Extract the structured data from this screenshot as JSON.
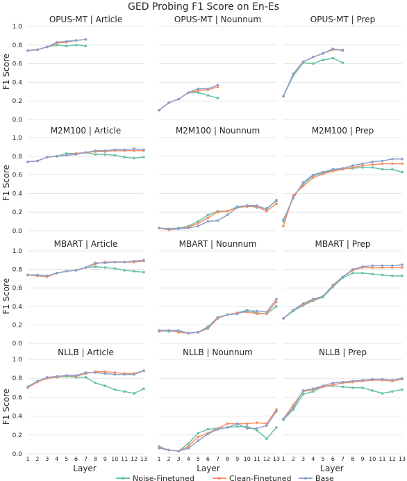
{
  "title": "GED Probing F1 Score on En-Es",
  "xlabel": "Layer",
  "ylabel": "F1 Score",
  "colors": {
    "Noise-Finetuned": "#66c2a5",
    "Clean-Finetuned": "#fc8d62",
    "Base": "#8da0cb",
    "grid": "#e6e6e6"
  },
  "legend": [
    "Noise-Finetuned",
    "Clean-Finetuned",
    "Base"
  ],
  "chart_data": {
    "type": "line",
    "grid": true,
    "ylim": [
      0,
      1
    ],
    "yticks": [
      "0.0",
      "0.2",
      "0.4",
      "0.6",
      "0.8",
      "1.0"
    ],
    "xticks": [
      "1",
      "2",
      "3",
      "4",
      "5",
      "6",
      "7",
      "8",
      "9",
      "10",
      "11",
      "12",
      "13"
    ],
    "panels": [
      {
        "title": "OPUS-MT | Article",
        "x": [
          1,
          2,
          3,
          4,
          5,
          6,
          7
        ],
        "series": [
          {
            "name": "Noise-Finetuned",
            "values": [
              0.74,
              0.75,
              0.78,
              0.8,
              0.79,
              0.8,
              0.79
            ]
          },
          {
            "name": "Clean-Finetuned",
            "values": [
              0.74,
              0.75,
              0.78,
              0.82,
              0.83,
              0.85,
              0.86
            ]
          },
          {
            "name": "Base",
            "values": [
              0.74,
              0.75,
              0.78,
              0.83,
              0.84,
              0.85,
              0.86
            ]
          }
        ]
      },
      {
        "title": "OPUS-MT | Nounnum",
        "x": [
          1,
          2,
          3,
          4,
          5,
          6,
          7
        ],
        "series": [
          {
            "name": "Noise-Finetuned",
            "values": [
              0.1,
              0.18,
              0.22,
              0.29,
              0.29,
              0.26,
              0.23
            ]
          },
          {
            "name": "Clean-Finetuned",
            "values": [
              0.1,
              0.18,
              0.22,
              0.29,
              0.31,
              0.32,
              0.35
            ]
          },
          {
            "name": "Base",
            "values": [
              0.1,
              0.18,
              0.22,
              0.29,
              0.33,
              0.33,
              0.37
            ]
          }
        ]
      },
      {
        "title": "OPUS-MT | Prep",
        "x": [
          1,
          2,
          3,
          4,
          5,
          6,
          7
        ],
        "series": [
          {
            "name": "Noise-Finetuned",
            "values": [
              0.25,
              0.47,
              0.61,
              0.6,
              0.64,
              0.66,
              0.61
            ]
          },
          {
            "name": "Clean-Finetuned",
            "values": [
              0.25,
              0.49,
              0.62,
              0.67,
              0.71,
              0.75,
              0.75
            ]
          },
          {
            "name": "Base",
            "values": [
              0.25,
              0.49,
              0.62,
              0.67,
              0.71,
              0.76,
              0.74
            ]
          }
        ]
      },
      {
        "title": "M2M100 | Article",
        "x": [
          1,
          2,
          3,
          4,
          5,
          6,
          7,
          8,
          9,
          10,
          11,
          12,
          13
        ],
        "series": [
          {
            "name": "Noise-Finetuned",
            "values": [
              0.74,
              0.75,
              0.79,
              0.8,
              0.83,
              0.83,
              0.84,
              0.82,
              0.82,
              0.81,
              0.79,
              0.78,
              0.79
            ]
          },
          {
            "name": "Clean-Finetuned",
            "values": [
              0.74,
              0.75,
              0.79,
              0.8,
              0.81,
              0.83,
              0.84,
              0.85,
              0.85,
              0.86,
              0.86,
              0.86,
              0.86
            ]
          },
          {
            "name": "Base",
            "values": [
              0.74,
              0.75,
              0.79,
              0.8,
              0.81,
              0.82,
              0.84,
              0.86,
              0.86,
              0.87,
              0.87,
              0.88,
              0.87
            ]
          }
        ]
      },
      {
        "title": "M2M100 | Nounnum",
        "x": [
          1,
          2,
          3,
          4,
          5,
          6,
          7,
          8,
          9,
          10,
          11,
          12,
          13
        ],
        "series": [
          {
            "name": "Noise-Finetuned",
            "values": [
              0.03,
              0.02,
              0.03,
              0.05,
              0.1,
              0.17,
              0.21,
              0.21,
              0.26,
              0.27,
              0.25,
              0.24,
              0.32
            ]
          },
          {
            "name": "Clean-Finetuned",
            "values": [
              0.03,
              0.01,
              0.02,
              0.04,
              0.08,
              0.14,
              0.2,
              0.21,
              0.25,
              0.26,
              0.26,
              0.21,
              0.29
            ]
          },
          {
            "name": "Base",
            "values": [
              0.03,
              0.02,
              0.02,
              0.03,
              0.05,
              0.1,
              0.11,
              0.17,
              0.25,
              0.27,
              0.27,
              0.23,
              0.33
            ]
          }
        ]
      },
      {
        "title": "M2M100 | Prep",
        "x": [
          1,
          2,
          3,
          4,
          5,
          6,
          7,
          8,
          9,
          10,
          11,
          12,
          13
        ],
        "series": [
          {
            "name": "Noise-Finetuned",
            "values": [
              0.1,
              0.37,
              0.5,
              0.59,
              0.62,
              0.65,
              0.67,
              0.67,
              0.68,
              0.68,
              0.66,
              0.66,
              0.63
            ]
          },
          {
            "name": "Clean-Finetuned",
            "values": [
              0.05,
              0.38,
              0.48,
              0.57,
              0.61,
              0.64,
              0.66,
              0.68,
              0.7,
              0.71,
              0.72,
              0.72,
              0.72
            ]
          },
          {
            "name": "Base",
            "values": [
              0.12,
              0.35,
              0.52,
              0.6,
              0.63,
              0.66,
              0.67,
              0.7,
              0.72,
              0.74,
              0.75,
              0.77,
              0.77
            ]
          }
        ]
      },
      {
        "title": "MBART | Article",
        "x": [
          1,
          2,
          3,
          4,
          5,
          6,
          7,
          8,
          9,
          10,
          11,
          12,
          13
        ],
        "series": [
          {
            "name": "Noise-Finetuned",
            "values": [
              0.74,
              0.74,
              0.73,
              0.76,
              0.78,
              0.79,
              0.82,
              0.83,
              0.82,
              0.81,
              0.79,
              0.78,
              0.77
            ]
          },
          {
            "name": "Clean-Finetuned",
            "values": [
              0.74,
              0.73,
              0.72,
              0.76,
              0.78,
              0.79,
              0.82,
              0.86,
              0.88,
              0.88,
              0.88,
              0.88,
              0.89
            ]
          },
          {
            "name": "Base",
            "values": [
              0.74,
              0.74,
              0.73,
              0.76,
              0.78,
              0.79,
              0.82,
              0.87,
              0.87,
              0.88,
              0.88,
              0.89,
              0.9
            ]
          }
        ]
      },
      {
        "title": "MBART | Nounnum",
        "x": [
          1,
          2,
          3,
          4,
          5,
          6,
          7,
          8,
          9,
          10,
          11,
          12,
          13
        ],
        "series": [
          {
            "name": "Noise-Finetuned",
            "values": [
              0.14,
              0.13,
              0.13,
              0.11,
              0.12,
              0.18,
              0.28,
              0.31,
              0.33,
              0.36,
              0.33,
              0.32,
              0.4
            ]
          },
          {
            "name": "Clean-Finetuned",
            "values": [
              0.13,
              0.14,
              0.12,
              0.11,
              0.12,
              0.16,
              0.27,
              0.31,
              0.33,
              0.34,
              0.32,
              0.32,
              0.45
            ]
          },
          {
            "name": "Base",
            "values": [
              0.14,
              0.14,
              0.14,
              0.11,
              0.12,
              0.17,
              0.28,
              0.31,
              0.32,
              0.35,
              0.35,
              0.34,
              0.48
            ]
          }
        ]
      },
      {
        "title": "MBART | Prep",
        "x": [
          1,
          2,
          3,
          4,
          5,
          6,
          7,
          8,
          9,
          10,
          11,
          12,
          13
        ],
        "series": [
          {
            "name": "Noise-Finetuned",
            "values": [
              0.27,
              0.35,
              0.41,
              0.46,
              0.5,
              0.61,
              0.71,
              0.76,
              0.76,
              0.75,
              0.74,
              0.73,
              0.73
            ]
          },
          {
            "name": "Clean-Finetuned",
            "values": [
              0.27,
              0.36,
              0.42,
              0.47,
              0.51,
              0.62,
              0.72,
              0.79,
              0.82,
              0.82,
              0.82,
              0.82,
              0.82
            ]
          },
          {
            "name": "Base",
            "values": [
              0.27,
              0.36,
              0.43,
              0.48,
              0.51,
              0.63,
              0.72,
              0.8,
              0.83,
              0.84,
              0.84,
              0.84,
              0.85
            ]
          }
        ]
      },
      {
        "title": "NLLB | Article",
        "x": [
          1,
          2,
          3,
          4,
          5,
          6,
          7,
          8,
          9,
          10,
          11,
          12,
          13
        ],
        "series": [
          {
            "name": "Noise-Finetuned",
            "values": [
              0.71,
              0.77,
              0.8,
              0.81,
              0.82,
              0.81,
              0.81,
              0.75,
              0.72,
              0.68,
              0.66,
              0.64,
              0.69
            ]
          },
          {
            "name": "Clean-Finetuned",
            "values": [
              0.7,
              0.76,
              0.8,
              0.81,
              0.83,
              0.82,
              0.85,
              0.87,
              0.87,
              0.86,
              0.85,
              0.85,
              0.88
            ]
          },
          {
            "name": "Base",
            "values": [
              0.71,
              0.77,
              0.81,
              0.82,
              0.83,
              0.83,
              0.86,
              0.86,
              0.85,
              0.84,
              0.84,
              0.84,
              0.88
            ]
          }
        ]
      },
      {
        "title": "NLLB | Nounnum",
        "x": [
          1,
          2,
          3,
          4,
          5,
          6,
          7,
          8,
          9,
          10,
          11,
          12,
          13
        ],
        "series": [
          {
            "name": "Noise-Finetuned",
            "values": [
              0.08,
              0.04,
              0.03,
              0.11,
              0.22,
              0.26,
              0.27,
              0.28,
              0.29,
              0.29,
              0.25,
              0.16,
              0.28
            ]
          },
          {
            "name": "Clean-Finetuned",
            "values": [
              0.07,
              0.04,
              0.03,
              0.08,
              0.18,
              0.22,
              0.27,
              0.32,
              0.32,
              0.32,
              0.33,
              0.32,
              0.47
            ]
          },
          {
            "name": "Base",
            "values": [
              0.06,
              0.04,
              0.03,
              0.06,
              0.14,
              0.21,
              0.26,
              0.28,
              0.32,
              0.27,
              0.27,
              0.3,
              0.45
            ]
          }
        ]
      },
      {
        "title": "NLLB | Prep",
        "x": [
          1,
          2,
          3,
          4,
          5,
          6,
          7,
          8,
          9,
          10,
          11,
          12,
          13
        ],
        "series": [
          {
            "name": "Noise-Finetuned",
            "values": [
              0.36,
              0.47,
              0.63,
              0.66,
              0.71,
              0.72,
              0.71,
              0.7,
              0.7,
              0.67,
              0.64,
              0.66,
              0.68
            ]
          },
          {
            "name": "Clean-Finetuned",
            "values": [
              0.37,
              0.52,
              0.66,
              0.68,
              0.71,
              0.73,
              0.75,
              0.76,
              0.77,
              0.78,
              0.78,
              0.77,
              0.79
            ]
          },
          {
            "name": "Base",
            "values": [
              0.37,
              0.49,
              0.67,
              0.69,
              0.72,
              0.75,
              0.76,
              0.77,
              0.78,
              0.79,
              0.79,
              0.78,
              0.8
            ]
          }
        ]
      }
    ]
  }
}
